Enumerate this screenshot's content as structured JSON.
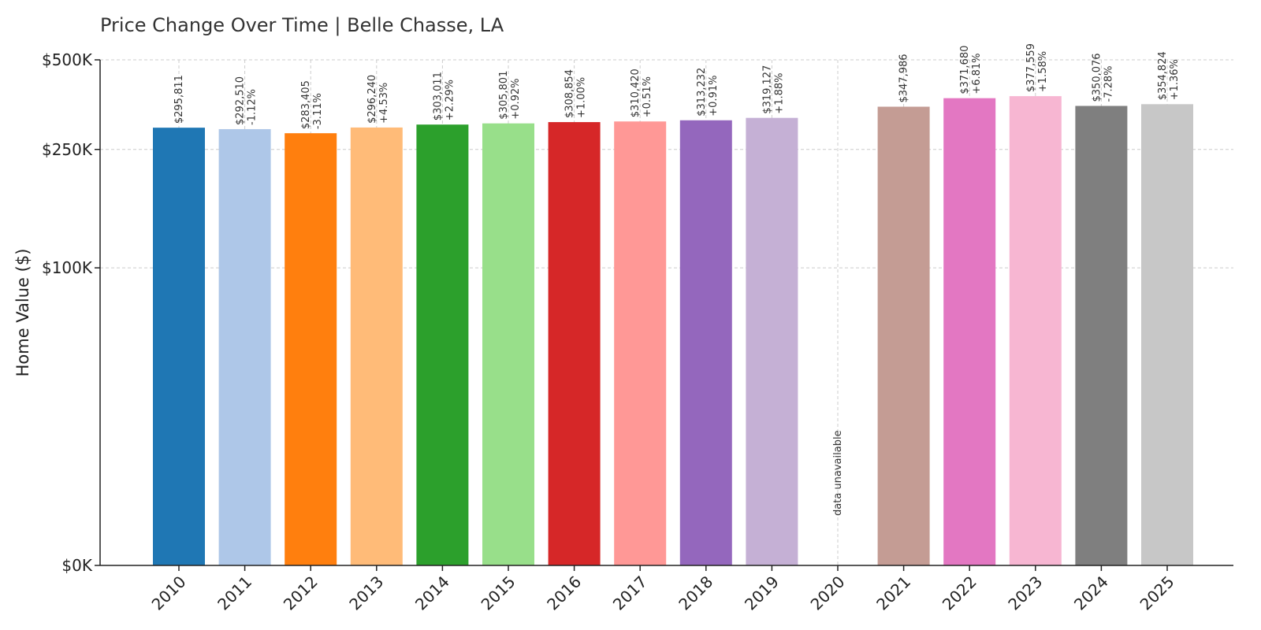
{
  "chart_data": {
    "type": "bar",
    "title": "Price Change Over Time | Belle Chasse, LA",
    "xlabel": "",
    "ylabel": "Home Value ($)",
    "categories": [
      "2010",
      "2011",
      "2012",
      "2013",
      "2014",
      "2015",
      "2016",
      "2017",
      "2018",
      "2019",
      "2020",
      "2021",
      "2022",
      "2023",
      "2024",
      "2025"
    ],
    "values": [
      295811,
      292510,
      283405,
      296240,
      303011,
      305801,
      308854,
      310420,
      313232,
      319127,
      null,
      347986,
      371680,
      377559,
      350076,
      354824
    ],
    "value_labels": [
      "$295,811",
      "$292,510",
      "$283,405",
      "$296,240",
      "$303,011",
      "$305,801",
      "$308,854",
      "$310,420",
      "$313,232",
      "$319,127",
      "",
      "$347,986",
      "$371,680",
      "$377,559",
      "$350,076",
      "$354,824"
    ],
    "change_labels": [
      "",
      "-1.12%",
      "-3.11%",
      "+4.53%",
      "+2.29%",
      "+0.92%",
      "+1.00%",
      "+0.51%",
      "+0.91%",
      "+1.88%",
      "",
      "",
      "+6.81%",
      "+1.58%",
      "-7.28%",
      "+1.36%"
    ],
    "missing_label": "data unavailable",
    "y_ticks": [
      {
        "value": 0,
        "label": "$0K"
      },
      {
        "value": 100000,
        "label": "$100K"
      },
      {
        "value": 250000,
        "label": "$250K"
      },
      {
        "value": 500000,
        "label": "$500K"
      }
    ],
    "y_scale": "symlog",
    "ylim": [
      0,
      500000
    ],
    "grid": true,
    "colors": [
      "#1f77b4",
      "#aec7e8",
      "#ff7f0e",
      "#ffbb78",
      "#2ca02c",
      "#98df8a",
      "#d62728",
      "#ff9896",
      "#9467bd",
      "#c5b0d5",
      "#8c564b",
      "#c49c94",
      "#e377c2",
      "#f7b6d2",
      "#7f7f7f",
      "#c7c7c7"
    ]
  }
}
